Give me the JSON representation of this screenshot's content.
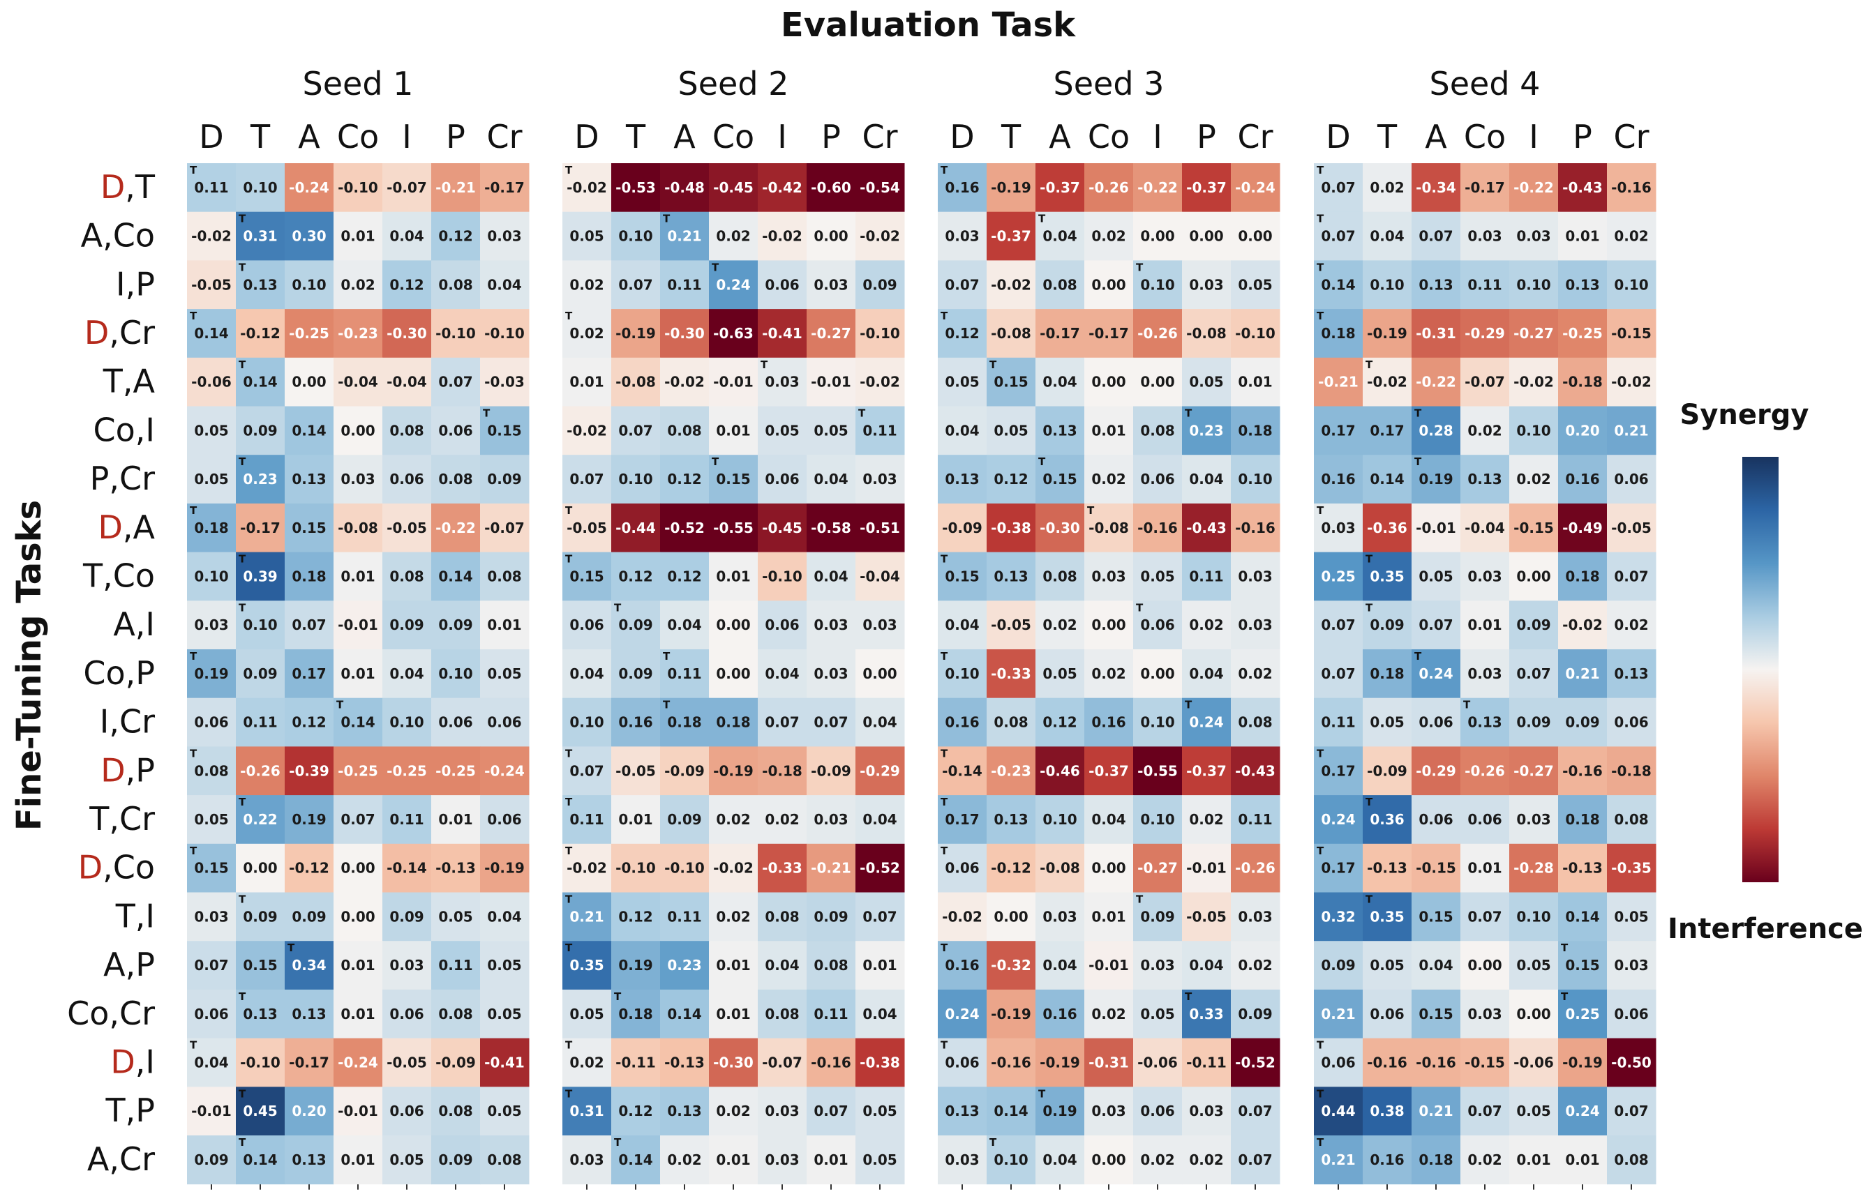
{
  "chart_data": {
    "type": "heatmap",
    "title": "Evaluation Task",
    "ylabel": "Fine-Tuning Tasks",
    "columns": [
      "D",
      "T",
      "A",
      "Co",
      "I",
      "P",
      "Cr"
    ],
    "rows": [
      "D,T",
      "A,Co",
      "I,P",
      "D,Cr",
      "T,A",
      "Co,I",
      "P,Cr",
      "D,A",
      "T,Co",
      "A,I",
      "Co,P",
      "I,Cr",
      "D,P",
      "T,Cr",
      "D,Co",
      "T,I",
      "A,P",
      "Co,Cr",
      "D,I",
      "T,P",
      "A,Cr"
    ],
    "highlight_task": "D",
    "highlight_color": "#b52a1c",
    "color_range": [
      -0.5,
      0.5
    ],
    "colorbar_labels": {
      "top": "Synergy",
      "bottom": "Interference"
    },
    "seeds": [
      {
        "name": "Seed 1",
        "values": [
          [
            0.11,
            0.1,
            -0.24,
            -0.1,
            -0.07,
            -0.21,
            -0.17
          ],
          [
            -0.02,
            0.31,
            0.3,
            0.01,
            0.04,
            0.12,
            0.03
          ],
          [
            -0.05,
            0.13,
            0.1,
            0.02,
            0.12,
            0.08,
            0.04
          ],
          [
            0.14,
            -0.12,
            -0.25,
            -0.23,
            -0.3,
            -0.1,
            -0.1
          ],
          [
            -0.06,
            0.14,
            -0.0,
            -0.04,
            -0.04,
            0.07,
            -0.03
          ],
          [
            0.05,
            0.09,
            0.14,
            0.0,
            0.08,
            0.06,
            0.15
          ],
          [
            0.05,
            0.23,
            0.13,
            0.03,
            0.06,
            0.08,
            0.09
          ],
          [
            0.18,
            -0.17,
            0.15,
            -0.08,
            -0.05,
            -0.22,
            -0.07
          ],
          [
            0.1,
            0.39,
            0.18,
            0.01,
            0.08,
            0.14,
            0.08
          ],
          [
            0.03,
            0.1,
            0.07,
            -0.01,
            0.09,
            0.09,
            0.01
          ],
          [
            0.19,
            0.09,
            0.17,
            0.01,
            0.04,
            0.1,
            0.05
          ],
          [
            0.06,
            0.11,
            0.12,
            0.14,
            0.1,
            0.06,
            0.06
          ],
          [
            0.08,
            -0.26,
            -0.39,
            -0.25,
            -0.25,
            -0.25,
            -0.24
          ],
          [
            0.05,
            0.22,
            0.19,
            0.07,
            0.11,
            0.01,
            0.06
          ],
          [
            0.15,
            0.0,
            -0.12,
            -0.0,
            -0.14,
            -0.13,
            -0.19
          ],
          [
            0.03,
            0.09,
            0.09,
            -0.0,
            0.09,
            0.05,
            0.04
          ],
          [
            0.07,
            0.15,
            0.34,
            0.01,
            0.03,
            0.11,
            0.05
          ],
          [
            0.06,
            0.13,
            0.13,
            0.01,
            0.06,
            0.08,
            0.05
          ],
          [
            0.04,
            -0.1,
            -0.17,
            -0.24,
            -0.05,
            -0.09,
            -0.41
          ],
          [
            -0.01,
            0.45,
            0.2,
            -0.01,
            0.06,
            0.08,
            0.05
          ],
          [
            0.09,
            0.14,
            0.13,
            0.01,
            0.05,
            0.09,
            0.08
          ]
        ]
      },
      {
        "name": "Seed 2",
        "values": [
          [
            -0.02,
            -0.53,
            -0.48,
            -0.45,
            -0.42,
            -0.6,
            -0.54
          ],
          [
            0.05,
            0.1,
            0.21,
            0.02,
            -0.02,
            0.0,
            -0.02
          ],
          [
            0.02,
            0.07,
            0.11,
            0.24,
            0.06,
            0.03,
            0.09
          ],
          [
            0.02,
            -0.19,
            -0.3,
            -0.63,
            -0.41,
            -0.27,
            -0.1
          ],
          [
            0.01,
            -0.08,
            -0.02,
            -0.01,
            0.03,
            -0.01,
            -0.02
          ],
          [
            -0.02,
            0.07,
            0.08,
            0.01,
            0.05,
            0.05,
            0.11
          ],
          [
            0.07,
            0.1,
            0.12,
            0.15,
            0.06,
            0.04,
            0.03
          ],
          [
            -0.05,
            -0.44,
            -0.52,
            -0.55,
            -0.45,
            -0.58,
            -0.51
          ],
          [
            0.15,
            0.12,
            0.12,
            0.01,
            -0.1,
            0.04,
            -0.04
          ],
          [
            0.06,
            0.09,
            0.04,
            0.0,
            0.06,
            0.03,
            0.03
          ],
          [
            0.04,
            0.09,
            0.11,
            0.0,
            0.04,
            0.03,
            0.0
          ],
          [
            0.1,
            0.16,
            0.18,
            0.18,
            0.07,
            0.07,
            0.04
          ],
          [
            0.07,
            -0.05,
            -0.09,
            -0.19,
            -0.18,
            -0.09,
            -0.29
          ],
          [
            0.11,
            0.01,
            0.09,
            0.02,
            0.02,
            0.03,
            0.04
          ],
          [
            -0.02,
            -0.1,
            -0.1,
            -0.02,
            -0.33,
            -0.21,
            -0.52
          ],
          [
            0.21,
            0.12,
            0.11,
            0.02,
            0.08,
            0.09,
            0.07
          ],
          [
            0.35,
            0.19,
            0.23,
            0.01,
            0.04,
            0.08,
            0.01
          ],
          [
            0.05,
            0.18,
            0.14,
            0.01,
            0.08,
            0.11,
            0.04
          ],
          [
            0.02,
            -0.11,
            -0.13,
            -0.3,
            -0.07,
            -0.16,
            -0.38
          ],
          [
            0.31,
            0.12,
            0.13,
            0.02,
            0.03,
            0.07,
            0.05
          ],
          [
            0.03,
            0.14,
            0.02,
            0.01,
            0.03,
            0.01,
            0.05
          ]
        ]
      },
      {
        "name": "Seed 3",
        "values": [
          [
            0.16,
            -0.19,
            -0.37,
            -0.26,
            -0.22,
            -0.37,
            -0.24
          ],
          [
            0.03,
            -0.37,
            0.04,
            0.02,
            -0.0,
            0.0,
            0.0
          ],
          [
            0.07,
            -0.02,
            0.08,
            0.0,
            0.1,
            0.03,
            0.05
          ],
          [
            0.12,
            -0.08,
            -0.17,
            -0.17,
            -0.26,
            -0.08,
            -0.1
          ],
          [
            0.05,
            0.15,
            0.04,
            -0.0,
            0.0,
            0.05,
            0.01
          ],
          [
            0.04,
            0.05,
            0.13,
            0.01,
            0.08,
            0.23,
            0.18
          ],
          [
            0.13,
            0.12,
            0.15,
            0.02,
            0.06,
            0.04,
            0.1
          ],
          [
            -0.09,
            -0.38,
            -0.3,
            -0.08,
            -0.16,
            -0.43,
            -0.16
          ],
          [
            0.15,
            0.13,
            0.08,
            0.03,
            0.05,
            0.11,
            0.03
          ],
          [
            0.04,
            -0.05,
            0.02,
            -0.0,
            0.06,
            0.02,
            0.03
          ],
          [
            0.1,
            -0.33,
            0.05,
            0.02,
            0.0,
            0.04,
            0.02
          ],
          [
            0.16,
            0.08,
            0.12,
            0.16,
            0.1,
            0.24,
            0.08
          ],
          [
            -0.14,
            -0.23,
            -0.46,
            -0.37,
            -0.55,
            -0.37,
            -0.43
          ],
          [
            0.17,
            0.13,
            0.1,
            0.04,
            0.1,
            0.02,
            0.11
          ],
          [
            0.06,
            -0.12,
            -0.08,
            -0.0,
            -0.27,
            -0.01,
            -0.26
          ],
          [
            -0.02,
            -0.0,
            0.03,
            0.01,
            0.09,
            -0.05,
            0.03
          ],
          [
            0.16,
            -0.32,
            0.04,
            -0.01,
            0.03,
            0.04,
            0.02
          ],
          [
            0.24,
            -0.19,
            0.16,
            0.02,
            0.05,
            0.33,
            0.09
          ],
          [
            0.06,
            -0.16,
            -0.19,
            -0.31,
            -0.06,
            -0.11,
            -0.52
          ],
          [
            0.13,
            0.14,
            0.19,
            0.03,
            0.06,
            0.03,
            0.07
          ],
          [
            0.03,
            0.1,
            0.04,
            0.0,
            0.02,
            0.02,
            0.07
          ]
        ]
      },
      {
        "name": "Seed 4",
        "values": [
          [
            0.07,
            0.02,
            -0.34,
            -0.17,
            -0.22,
            -0.43,
            -0.16
          ],
          [
            0.07,
            0.04,
            0.07,
            0.03,
            0.03,
            0.01,
            0.02
          ],
          [
            0.14,
            0.1,
            0.13,
            0.11,
            0.1,
            0.13,
            0.1
          ],
          [
            0.18,
            -0.19,
            -0.31,
            -0.29,
            -0.27,
            -0.25,
            -0.15
          ],
          [
            -0.21,
            -0.02,
            -0.22,
            -0.07,
            -0.02,
            -0.18,
            -0.02
          ],
          [
            0.17,
            0.17,
            0.28,
            0.02,
            0.1,
            0.2,
            0.21
          ],
          [
            0.16,
            0.14,
            0.19,
            0.13,
            0.02,
            0.16,
            0.06
          ],
          [
            0.03,
            -0.36,
            -0.01,
            -0.04,
            -0.15,
            -0.49,
            -0.05
          ],
          [
            0.25,
            0.35,
            0.05,
            0.03,
            0.0,
            0.18,
            0.07
          ],
          [
            0.07,
            0.09,
            0.07,
            0.01,
            0.09,
            -0.02,
            0.02
          ],
          [
            0.07,
            0.18,
            0.24,
            0.03,
            0.07,
            0.21,
            0.13
          ],
          [
            0.11,
            0.05,
            0.06,
            0.13,
            0.09,
            0.09,
            0.06
          ],
          [
            0.17,
            -0.09,
            -0.29,
            -0.26,
            -0.27,
            -0.16,
            -0.18
          ],
          [
            0.24,
            0.36,
            0.06,
            0.06,
            0.03,
            0.18,
            0.08
          ],
          [
            0.17,
            -0.13,
            -0.15,
            0.01,
            -0.28,
            -0.13,
            -0.35
          ],
          [
            0.32,
            0.35,
            0.15,
            0.07,
            0.1,
            0.14,
            0.05
          ],
          [
            0.09,
            0.05,
            0.04,
            0.0,
            0.05,
            0.15,
            0.03
          ],
          [
            0.21,
            0.06,
            0.15,
            0.03,
            -0.0,
            0.25,
            0.06
          ],
          [
            0.06,
            -0.16,
            -0.16,
            -0.15,
            -0.06,
            -0.19,
            -0.5
          ],
          [
            0.44,
            0.38,
            0.21,
            0.07,
            0.05,
            0.24,
            0.07
          ],
          [
            0.21,
            0.16,
            0.18,
            0.02,
            0.01,
            0.01,
            0.08
          ]
        ]
      }
    ],
    "marker_glyph": "T"
  }
}
